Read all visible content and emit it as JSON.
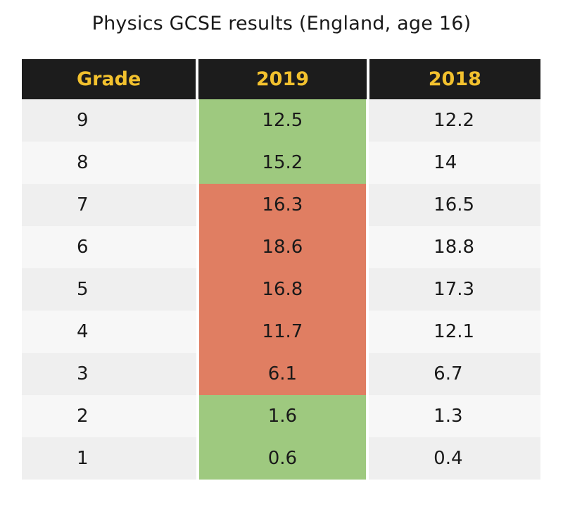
{
  "chart_data": {
    "type": "table",
    "title": "Physics GCSE results (England, age 16)",
    "columns": [
      "Grade",
      "2019",
      "2018"
    ],
    "rows": [
      {
        "grade": "9",
        "y2019": "12.5",
        "y2018": "12.2",
        "highlight": "green"
      },
      {
        "grade": "8",
        "y2019": "15.2",
        "y2018": "14",
        "highlight": "green"
      },
      {
        "grade": "7",
        "y2019": "16.3",
        "y2018": "16.5",
        "highlight": "red"
      },
      {
        "grade": "6",
        "y2019": "18.6",
        "y2018": "18.8",
        "highlight": "red"
      },
      {
        "grade": "5",
        "y2019": "16.8",
        "y2018": "17.3",
        "highlight": "red"
      },
      {
        "grade": "4",
        "y2019": "11.7",
        "y2018": "12.1",
        "highlight": "red"
      },
      {
        "grade": "3",
        "y2019": "6.1",
        "y2018": "6.7",
        "highlight": "red"
      },
      {
        "grade": "2",
        "y2019": "1.6",
        "y2018": "1.3",
        "highlight": "green"
      },
      {
        "grade": "1",
        "y2019": "0.6",
        "y2018": "0.4",
        "highlight": "green"
      }
    ],
    "colors": {
      "header_bg": "#1c1c1c",
      "header_text": "#f2c12e",
      "increase": "#9ec97f",
      "decrease": "#e07e62"
    }
  }
}
